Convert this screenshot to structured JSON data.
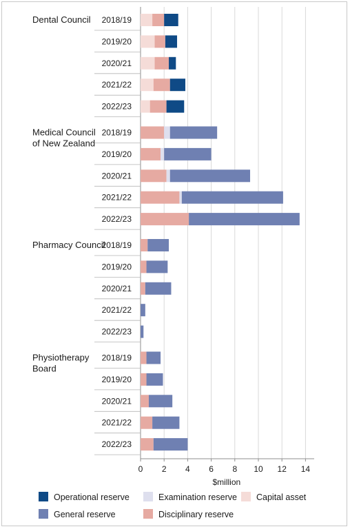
{
  "chart_data": {
    "type": "bar",
    "orientation": "horizontal",
    "stacked": true,
    "xlabel": "$million",
    "xlim": [
      0,
      14
    ],
    "x_ticks": [
      "0",
      "2",
      "4",
      "6",
      "8",
      "10",
      "12",
      "14"
    ],
    "grid": true,
    "legend_position": "bottom",
    "stack_order": [
      "Capital asset",
      "Disciplinary reserve",
      "Examination reserve",
      "General reserve",
      "Operational reserve"
    ],
    "series_colors": {
      "Capital asset": "#f5dcd8",
      "Disciplinary reserve": "#e6aaa2",
      "Examination reserve": "#dedfee",
      "General reserve": "#6f80b2",
      "Operational reserve": "#0f4a86"
    },
    "legend": [
      {
        "name": "Operational reserve",
        "color": "#0f4a86"
      },
      {
        "name": "Examination reserve",
        "color": "#dedfee"
      },
      {
        "name": "Capital asset",
        "color": "#f5dcd8"
      },
      {
        "name": "General reserve",
        "color": "#6f80b2"
      },
      {
        "name": "Disciplinary reserve",
        "color": "#e6aaa2"
      }
    ],
    "groups": [
      {
        "name_lines": [
          "Dental Council"
        ],
        "bars": [
          {
            "year": "2018/19",
            "values": {
              "Capital asset": 1.0,
              "Disciplinary reserve": 1.0,
              "Operational reserve": 1.2
            }
          },
          {
            "year": "2019/20",
            "values": {
              "Capital asset": 1.2,
              "Disciplinary reserve": 0.9,
              "Operational reserve": 1.0
            }
          },
          {
            "year": "2020/21",
            "values": {
              "Capital asset": 1.2,
              "Disciplinary reserve": 1.2,
              "Operational reserve": 0.6
            }
          },
          {
            "year": "2021/22",
            "values": {
              "Capital asset": 1.1,
              "Disciplinary reserve": 1.4,
              "Operational reserve": 1.3
            }
          },
          {
            "year": "2022/23",
            "values": {
              "Capital asset": 0.8,
              "Disciplinary reserve": 1.4,
              "Operational reserve": 1.5
            }
          }
        ]
      },
      {
        "name_lines": [
          "Medical Council",
          "of New Zealand"
        ],
        "bars": [
          {
            "year": "2018/19",
            "values": {
              "Disciplinary reserve": 2.0,
              "Examination reserve": 0.5,
              "General reserve": 4.0
            }
          },
          {
            "year": "2019/20",
            "values": {
              "Disciplinary reserve": 1.7,
              "Examination reserve": 0.3,
              "General reserve": 4.0
            }
          },
          {
            "year": "2020/21",
            "values": {
              "Disciplinary reserve": 2.2,
              "Examination reserve": 0.3,
              "General reserve": 6.8
            }
          },
          {
            "year": "2021/22",
            "values": {
              "Disciplinary reserve": 3.3,
              "Examination reserve": 0.2,
              "General reserve": 8.6
            }
          },
          {
            "year": "2022/23",
            "values": {
              "Disciplinary reserve": 4.1,
              "General reserve": 9.4
            }
          }
        ]
      },
      {
        "name_lines": [
          "Pharmacy Council"
        ],
        "bars": [
          {
            "year": "2018/19",
            "values": {
              "Disciplinary reserve": 0.6,
              "General reserve": 1.8
            }
          },
          {
            "year": "2019/20",
            "values": {
              "Disciplinary reserve": 0.5,
              "General reserve": 1.8
            }
          },
          {
            "year": "2020/21",
            "values": {
              "Disciplinary reserve": 0.4,
              "General reserve": 2.2
            }
          },
          {
            "year": "2021/22",
            "values": {
              "General reserve": 0.4
            }
          },
          {
            "year": "2022/23",
            "values": {
              "General reserve": 0.25
            }
          }
        ]
      },
      {
        "name_lines": [
          "Physiotherapy",
          "Board"
        ],
        "bars": [
          {
            "year": "2018/19",
            "values": {
              "Disciplinary reserve": 0.5,
              "General reserve": 1.2
            }
          },
          {
            "year": "2019/20",
            "values": {
              "Disciplinary reserve": 0.5,
              "General reserve": 1.4
            }
          },
          {
            "year": "2020/21",
            "values": {
              "Disciplinary reserve": 0.7,
              "General reserve": 2.0
            }
          },
          {
            "year": "2021/22",
            "values": {
              "Disciplinary reserve": 1.0,
              "General reserve": 2.3
            }
          },
          {
            "year": "2022/23",
            "values": {
              "Disciplinary reserve": 1.1,
              "General reserve": 2.9
            }
          }
        ]
      }
    ]
  }
}
